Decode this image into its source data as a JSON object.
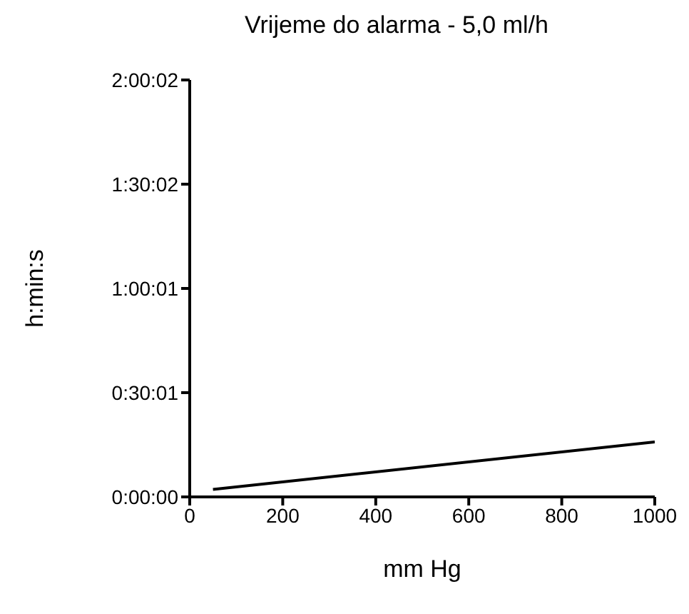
{
  "chart_data": {
    "type": "line",
    "title": "Vrijeme do alarma - 5,0 ml/h",
    "xlabel": "mm Hg",
    "ylabel": "h:min:s",
    "x": [
      50,
      1000
    ],
    "series": [
      {
        "color": "#000000",
        "values": [
          130,
          950
        ]
      }
    ],
    "xlim": [
      0,
      1000
    ],
    "xticks": [
      0,
      200,
      400,
      600,
      800,
      1000
    ],
    "ylim": [
      0,
      7202
    ],
    "yticks": [
      {
        "value": 0,
        "label": "0:00:00"
      },
      {
        "value": 1801,
        "label": "0:30:01"
      },
      {
        "value": 3601,
        "label": "1:00:01"
      },
      {
        "value": 5402,
        "label": "1:30:02"
      },
      {
        "value": 7202,
        "label": "2:00:02"
      }
    ],
    "marker": "none",
    "line_style": "solid"
  }
}
